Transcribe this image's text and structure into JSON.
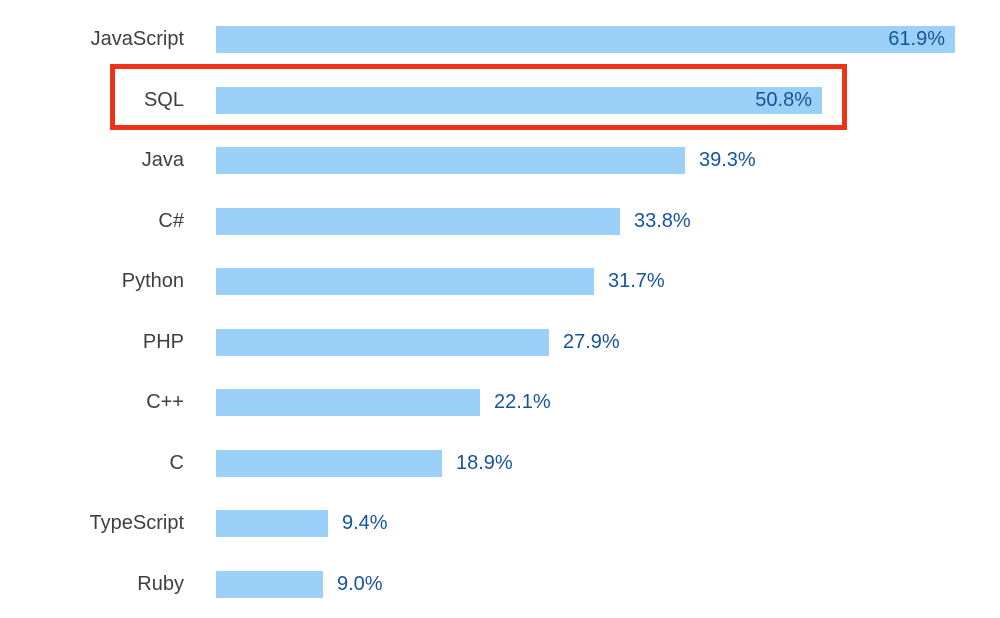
{
  "chart_data": {
    "type": "bar",
    "orientation": "horizontal",
    "title": "",
    "xlabel": "",
    "ylabel": "",
    "xlim": [
      0,
      66
    ],
    "grid": false,
    "legend": false,
    "categories": [
      "JavaScript",
      "SQL",
      "Java",
      "C#",
      "Python",
      "PHP",
      "C++",
      "C",
      "TypeScript",
      "Ruby"
    ],
    "values": [
      61.9,
      50.8,
      39.3,
      33.8,
      31.7,
      27.9,
      22.1,
      18.9,
      9.4,
      9.0
    ],
    "value_labels": [
      "61.9%",
      "50.8%",
      "39.3%",
      "33.8%",
      "31.7%",
      "27.9%",
      "22.1%",
      "18.9%",
      "9.4%",
      "9.0%"
    ],
    "value_label_inside": [
      true,
      true,
      false,
      false,
      false,
      false,
      false,
      false,
      false,
      false
    ]
  },
  "highlight": {
    "type": "rectangle-outline",
    "category": "SQL",
    "row_index": 1,
    "color": "#EC3318"
  },
  "colors": {
    "bar_fill": "#9BD1F8",
    "value_text": "#17539B",
    "category_text": "#3F3F3F",
    "background": "#FFFFFF"
  }
}
